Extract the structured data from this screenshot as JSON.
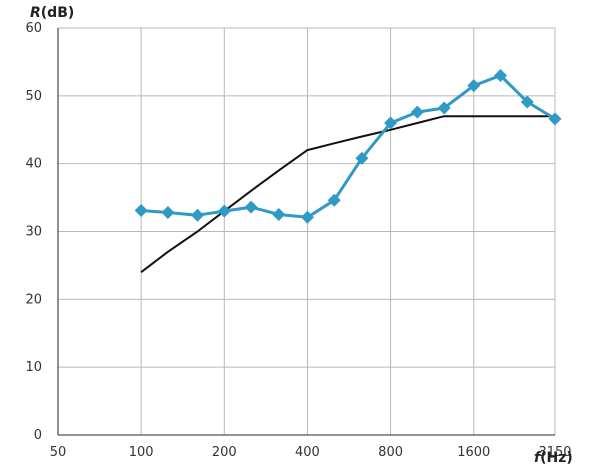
{
  "chart_data": {
    "type": "line",
    "xscale": "log2",
    "x_tick_labels": [
      "50",
      "100",
      "200",
      "400",
      "800",
      "1600",
      "3150"
    ],
    "x_tick_values": [
      50,
      100,
      200,
      400,
      800,
      1600,
      3150
    ],
    "ylim": [
      0,
      60
    ],
    "y_ticks": [
      0,
      10,
      20,
      30,
      40,
      50,
      60
    ],
    "ylabel_italic": "R",
    "ylabel_rest": "(dB)",
    "xlabel_italic": "f",
    "xlabel_rest": "(Hz)",
    "grid": true,
    "series": [
      {
        "color": "#2f9ac6",
        "marker": "diamond",
        "x": [
          100,
          125,
          160,
          200,
          250,
          315,
          400,
          500,
          630,
          800,
          1000,
          1250,
          1600,
          2000,
          2500,
          3150
        ],
        "values": [
          33.1,
          32.8,
          32.4,
          33.0,
          33.6,
          32.5,
          32.1,
          34.6,
          40.8,
          46.0,
          47.6,
          48.2,
          51.5,
          53.0,
          49.1,
          46.6
        ]
      },
      {
        "color": "#111111",
        "marker": "none",
        "x": [
          100,
          125,
          160,
          200,
          250,
          315,
          400,
          500,
          630,
          800,
          1000,
          1250,
          1600,
          2000,
          2500,
          3150
        ],
        "values": [
          24,
          27,
          30,
          33,
          36,
          39,
          42,
          43,
          44,
          45,
          46,
          47,
          47,
          47,
          47,
          47
        ]
      }
    ]
  }
}
